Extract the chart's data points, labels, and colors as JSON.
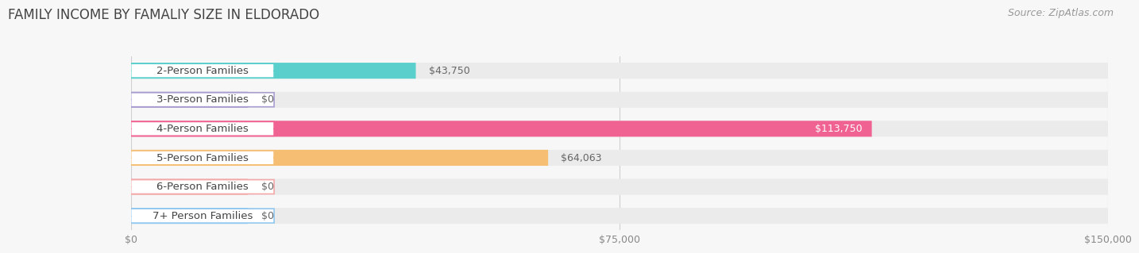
{
  "title": "FAMILY INCOME BY FAMALIY SIZE IN ELDORADO",
  "source": "Source: ZipAtlas.com",
  "categories": [
    "2-Person Families",
    "3-Person Families",
    "4-Person Families",
    "5-Person Families",
    "6-Person Families",
    "7+ Person Families"
  ],
  "values": [
    43750,
    0,
    113750,
    64063,
    0,
    0
  ],
  "bar_colors": [
    "#5BCFCB",
    "#A99DD0",
    "#F06292",
    "#F6BE72",
    "#F4A8A8",
    "#92C8F0"
  ],
  "xlim": [
    0,
    150000
  ],
  "xticks": [
    0,
    75000,
    150000
  ],
  "xtick_labels": [
    "$0",
    "$75,000",
    "$150,000"
  ],
  "value_labels": [
    "$43,750",
    "$0",
    "$113,750",
    "$64,063",
    "$0",
    "$0"
  ],
  "value_label_inside": [
    false,
    false,
    true,
    false,
    false,
    false
  ],
  "background_color": "#f7f7f7",
  "bar_bg_color": "#ebebeb",
  "title_fontsize": 12,
  "source_fontsize": 9,
  "tick_fontsize": 9,
  "label_fontsize": 9.5,
  "value_fontsize": 9,
  "zero_stub_value": 18000
}
